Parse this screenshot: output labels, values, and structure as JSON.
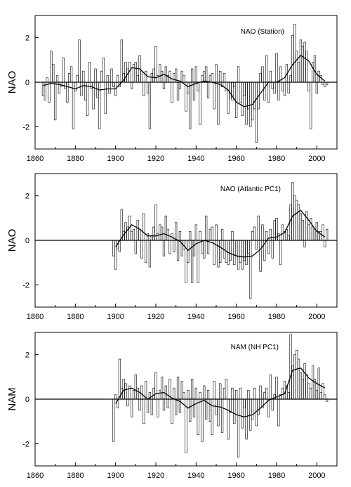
{
  "chart_data": [
    {
      "type": "bar",
      "title": "NAO (Station)",
      "xlabel": "",
      "ylabel": "NAO",
      "xlim": [
        1860,
        2010
      ],
      "ylim": [
        -3,
        3
      ],
      "xticks": [
        "1860",
        "1880",
        "1900",
        "1920",
        "1940",
        "1960",
        "1980",
        "2000"
      ],
      "yticks": [
        "2",
        "0",
        "-2"
      ],
      "grid": false,
      "series": [
        {
          "kind": "bars",
          "x": [
            1864,
            1865,
            1866,
            1867,
            1868,
            1869,
            1870,
            1871,
            1872,
            1873,
            1874,
            1875,
            1876,
            1877,
            1878,
            1879,
            1880,
            1881,
            1882,
            1883,
            1884,
            1885,
            1886,
            1887,
            1888,
            1889,
            1890,
            1891,
            1892,
            1893,
            1894,
            1895,
            1896,
            1897,
            1898,
            1899,
            1900,
            1901,
            1902,
            1903,
            1904,
            1905,
            1906,
            1907,
            1908,
            1909,
            1910,
            1911,
            1912,
            1913,
            1914,
            1915,
            1916,
            1917,
            1918,
            1919,
            1920,
            1921,
            1922,
            1923,
            1924,
            1925,
            1926,
            1927,
            1928,
            1929,
            1930,
            1931,
            1932,
            1933,
            1934,
            1935,
            1936,
            1937,
            1938,
            1939,
            1940,
            1941,
            1942,
            1943,
            1944,
            1945,
            1946,
            1947,
            1948,
            1949,
            1950,
            1951,
            1952,
            1953,
            1954,
            1955,
            1956,
            1957,
            1958,
            1959,
            1960,
            1961,
            1962,
            1963,
            1964,
            1965,
            1966,
            1967,
            1968,
            1969,
            1970,
            1971,
            1972,
            1973,
            1974,
            1975,
            1976,
            1977,
            1978,
            1979,
            1980,
            1981,
            1982,
            1983,
            1984,
            1985,
            1986,
            1987,
            1988,
            1989,
            1990,
            1991,
            1992,
            1993,
            1994,
            1995,
            1996,
            1997,
            1998,
            1999,
            2000,
            2001,
            2002,
            2003,
            2004,
            2005
          ],
          "values": [
            -0.6,
            -0.8,
            0.2,
            -0.9,
            1.4,
            0.8,
            -1.7,
            0.3,
            -0.5,
            -0.2,
            1.1,
            -0.3,
            -0.9,
            0.4,
            0.7,
            -2.1,
            -0.4,
            0.3,
            1.9,
            -0.6,
            0.5,
            -0.8,
            -1.5,
            0.9,
            -0.3,
            -1.2,
            0.6,
            -0.7,
            -2.1,
            0.5,
            1.1,
            -1.4,
            0.3,
            -0.5,
            0.6,
            -0.2,
            -0.6,
            0.3,
            -0.2,
            1.9,
            0.4,
            0.9,
            0.6,
            0.9,
            -0.3,
            0.8,
            0.9,
            0.3,
            1.2,
            0.5,
            -0.6,
            0.5,
            -0.5,
            -2.1,
            0.4,
            0.6,
            1.6,
            0.3,
            0.8,
            0.5,
            -0.3,
            0.7,
            0.3,
            0.5,
            -0.9,
            0.4,
            0.6,
            -0.8,
            -0.3,
            0.5,
            0.3,
            -1.3,
            -0.5,
            -2.1,
            0.6,
            -0.8,
            0.7,
            -0.4,
            -1.9,
            0.3,
            0.5,
            0.7,
            -0.7,
            0.3,
            0.4,
            -1.2,
            0.8,
            -1.9,
            0.5,
            -0.2,
            0.4,
            -0.4,
            -1.4,
            -0.7,
            -0.8,
            -0.2,
            -1.6,
            0.7,
            -0.9,
            -1.5,
            -0.6,
            -1.9,
            -1.2,
            -2.0,
            -1.7,
            -1.2,
            -2.7,
            -1.2,
            0.4,
            0.7,
            -0.8,
            1.2,
            -0.9,
            0.5,
            -0.3,
            -0.5,
            1.3,
            -0.8,
            0.7,
            -0.4,
            -0.6,
            0.8,
            -0.5,
            0.3,
            2.1,
            2.6,
            1.4,
            0.9,
            1.9,
            1.6,
            1.8,
            1.4,
            -0.4,
            -2.1,
            0.9,
            1.2,
            -0.5,
            0.5,
            0.3,
            -0.1,
            -0.2,
            -0.1
          ]
        },
        {
          "kind": "smooth",
          "x": [
            1864,
            1868,
            1872,
            1876,
            1880,
            1884,
            1888,
            1892,
            1896,
            1900,
            1904,
            1908,
            1912,
            1916,
            1920,
            1924,
            1928,
            1932,
            1936,
            1940,
            1944,
            1948,
            1952,
            1956,
            1960,
            1964,
            1968,
            1972,
            1976,
            1980,
            1984,
            1988,
            1992,
            1996,
            2000,
            2004
          ],
          "values": [
            -0.15,
            -0.05,
            -0.1,
            -0.2,
            -0.3,
            -0.15,
            -0.2,
            -0.35,
            -0.3,
            -0.3,
            0.1,
            0.65,
            0.6,
            0.25,
            0.2,
            0.35,
            0.15,
            0.05,
            -0.2,
            -0.05,
            0.05,
            0.0,
            -0.1,
            -0.35,
            -0.9,
            -1.1,
            -1.0,
            -0.5,
            0.0,
            0.0,
            0.2,
            0.8,
            1.2,
            0.95,
            0.35,
            0.05
          ]
        }
      ]
    },
    {
      "type": "bar",
      "title": "NAO (Atlantic PC1)",
      "xlabel": "",
      "ylabel": "NAO",
      "xlim": [
        1860,
        2010
      ],
      "ylim": [
        -3,
        3
      ],
      "xticks": [
        "1860",
        "1880",
        "1900",
        "1920",
        "1940",
        "1960",
        "1980",
        "2000"
      ],
      "yticks": [
        "2",
        "0",
        "-2"
      ],
      "grid": false,
      "series": [
        {
          "kind": "bars",
          "x": [
            1899,
            1900,
            1901,
            1902,
            1903,
            1904,
            1905,
            1906,
            1907,
            1908,
            1909,
            1910,
            1911,
            1912,
            1913,
            1914,
            1915,
            1916,
            1917,
            1918,
            1919,
            1920,
            1921,
            1922,
            1923,
            1924,
            1925,
            1926,
            1927,
            1928,
            1929,
            1930,
            1931,
            1932,
            1933,
            1934,
            1935,
            1936,
            1937,
            1938,
            1939,
            1940,
            1941,
            1942,
            1943,
            1944,
            1945,
            1946,
            1947,
            1948,
            1949,
            1950,
            1951,
            1952,
            1953,
            1954,
            1955,
            1956,
            1957,
            1958,
            1959,
            1960,
            1961,
            1962,
            1963,
            1964,
            1965,
            1966,
            1967,
            1968,
            1969,
            1970,
            1971,
            1972,
            1973,
            1974,
            1975,
            1976,
            1977,
            1978,
            1979,
            1980,
            1981,
            1982,
            1983,
            1984,
            1985,
            1986,
            1987,
            1988,
            1989,
            1990,
            1991,
            1992,
            1993,
            1994,
            1995,
            1996,
            1997,
            1998,
            1999,
            2000,
            2001,
            2002,
            2003,
            2004,
            2005
          ],
          "values": [
            -0.7,
            -1.3,
            -0.4,
            -0.5,
            1.4,
            0.4,
            0.8,
            0.6,
            1.1,
            0.4,
            0.5,
            -0.6,
            0.9,
            0.5,
            -0.8,
            1.2,
            -1.0,
            0.3,
            -1.2,
            0.2,
            0.6,
            1.6,
            0.3,
            0.7,
            0.6,
            -0.7,
            1.1,
            0.5,
            -0.6,
            0.3,
            -0.5,
            0.8,
            -0.9,
            0.4,
            -0.7,
            -0.4,
            -1.9,
            -1.0,
            0.4,
            -1.9,
            -0.7,
            0.7,
            -1.9,
            0.4,
            -0.6,
            -0.8,
            1.1,
            -0.6,
            0.5,
            0.6,
            -1.1,
            0.7,
            -1.2,
            -1.0,
            0.5,
            -0.8,
            -1.0,
            -1.1,
            -0.9,
            0.4,
            -1.1,
            -0.7,
            -1.3,
            -1.0,
            -1.3,
            -0.9,
            -1.1,
            -0.6,
            -2.6,
            0.4,
            0.6,
            -0.4,
            1.1,
            -1.4,
            0.7,
            -0.9,
            0.4,
            -0.6,
            0.5,
            -0.8,
            0.9,
            1.0,
            0.3,
            -1.1,
            0.7,
            0.4,
            0.5,
            0.2,
            1.6,
            2.6,
            2.0,
            1.8,
            1.6,
            1.2,
            0.9,
            -0.3,
            1.3,
            0.7,
            1.0,
            0.6,
            0.5,
            0.8,
            0.4,
            0.4,
            0.7,
            -0.3,
            0.5
          ]
        },
        {
          "kind": "smooth",
          "x": [
            1900,
            1904,
            1908,
            1912,
            1916,
            1920,
            1924,
            1928,
            1932,
            1936,
            1940,
            1944,
            1948,
            1952,
            1956,
            1960,
            1964,
            1968,
            1972,
            1976,
            1980,
            1984,
            1988,
            1992,
            1996,
            2000,
            2004
          ],
          "values": [
            -0.3,
            0.25,
            0.7,
            0.5,
            0.2,
            0.2,
            0.3,
            0.15,
            -0.05,
            -0.45,
            -0.15,
            0.0,
            -0.1,
            -0.3,
            -0.55,
            -0.7,
            -0.75,
            -0.7,
            -0.4,
            0.1,
            0.15,
            0.35,
            1.1,
            1.35,
            0.9,
            0.4,
            0.15
          ]
        }
      ]
    },
    {
      "type": "bar",
      "title": "NAM (NH PC1)",
      "xlabel": "",
      "ylabel": "NAM",
      "xlim": [
        1860,
        2010
      ],
      "ylim": [
        -3,
        3
      ],
      "xticks": [
        "1860",
        "1880",
        "1900",
        "1920",
        "1940",
        "1960",
        "1980",
        "2000"
      ],
      "yticks": [
        "2",
        "0",
        "-2"
      ],
      "grid": false,
      "series": [
        {
          "kind": "bars",
          "x": [
            1899,
            1900,
            1901,
            1902,
            1903,
            1904,
            1905,
            1906,
            1907,
            1908,
            1909,
            1910,
            1911,
            1912,
            1913,
            1914,
            1915,
            1916,
            1917,
            1918,
            1919,
            1920,
            1921,
            1922,
            1923,
            1924,
            1925,
            1926,
            1927,
            1928,
            1929,
            1930,
            1931,
            1932,
            1933,
            1934,
            1935,
            1936,
            1937,
            1938,
            1939,
            1940,
            1941,
            1942,
            1943,
            1944,
            1945,
            1946,
            1947,
            1948,
            1949,
            1950,
            1951,
            1952,
            1953,
            1954,
            1955,
            1956,
            1957,
            1958,
            1959,
            1960,
            1961,
            1962,
            1963,
            1964,
            1965,
            1966,
            1967,
            1968,
            1969,
            1970,
            1971,
            1972,
            1973,
            1974,
            1975,
            1976,
            1977,
            1978,
            1979,
            1980,
            1981,
            1982,
            1983,
            1984,
            1985,
            1986,
            1987,
            1988,
            1989,
            1990,
            1991,
            1992,
            1993,
            1994,
            1995,
            1996,
            1997,
            1998,
            1999,
            2000,
            2001,
            2002,
            2003,
            2004,
            2005
          ],
          "values": [
            -1.9,
            0.2,
            -0.4,
            1.8,
            0.5,
            0.9,
            0.7,
            -0.3,
            0.6,
            -0.8,
            0.4,
            1.1,
            0.5,
            -0.5,
            0.6,
            -1.1,
            0.8,
            -0.6,
            0.3,
            -0.7,
            0.5,
            1.2,
            -0.8,
            0.4,
            1.0,
            -0.5,
            0.6,
            -0.4,
            0.9,
            -1.1,
            0.5,
            -0.7,
            1.0,
            -0.6,
            0.8,
            0.3,
            -2.4,
            0.4,
            -1.0,
            0.9,
            -0.8,
            0.5,
            -1.6,
            0.3,
            -1.9,
            0.6,
            -0.9,
            0.4,
            -1.0,
            -1.6,
            0.8,
            -0.7,
            -1.2,
            0.7,
            -1.5,
            0.5,
            0.9,
            -1.8,
            -0.6,
            0.5,
            -1.1,
            0.4,
            -2.6,
            0.5,
            -1.3,
            -0.4,
            -1.8,
            0.4,
            -1.4,
            -0.9,
            0.5,
            -1.2,
            -0.7,
            0.6,
            -0.4,
            0.3,
            0.5,
            -0.8,
            1.1,
            -0.5,
            0.2,
            1.0,
            -1.2,
            0.2,
            0.5,
            0.8,
            0.6,
            0.3,
            2.9,
            1.5,
            2.0,
            2.2,
            1.8,
            1.2,
            0.9,
            1.6,
            1.1,
            0.7,
            0.5,
            1.5,
            0.9,
            0.4,
            1.4,
            0.3,
            0.7,
            0.2,
            -0.1
          ]
        },
        {
          "kind": "smooth",
          "x": [
            1900,
            1904,
            1908,
            1912,
            1916,
            1920,
            1924,
            1928,
            1932,
            1936,
            1940,
            1944,
            1948,
            1952,
            1956,
            1960,
            1964,
            1968,
            1972,
            1976,
            1980,
            1984,
            1988,
            1992,
            1996,
            2000,
            2004
          ],
          "values": [
            -0.2,
            0.4,
            0.5,
            0.3,
            0.0,
            0.25,
            0.3,
            0.05,
            -0.1,
            -0.4,
            -0.2,
            -0.05,
            -0.3,
            -0.35,
            -0.5,
            -0.7,
            -0.8,
            -0.7,
            -0.4,
            -0.05,
            0.1,
            0.25,
            1.3,
            1.4,
            0.95,
            0.7,
            0.5
          ]
        }
      ]
    }
  ]
}
